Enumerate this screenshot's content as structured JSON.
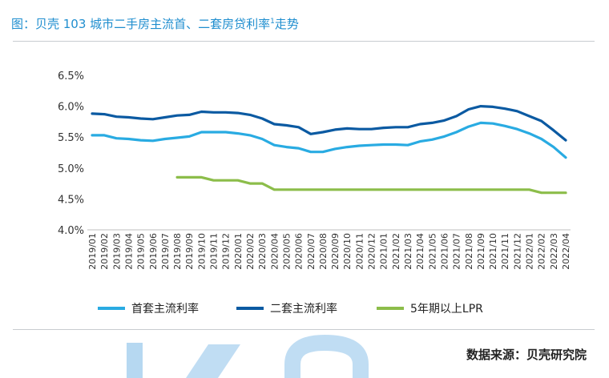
{
  "header": {
    "title": "图：贝壳 103 城市二手房主流首、二套房贷利率",
    "title_sup": "1",
    "title_tail": "走势"
  },
  "footer": {
    "source": "数据来源：贝壳研究院"
  },
  "colors": {
    "first_home": "#29abe2",
    "second_home": "#0b5aa2",
    "lpr": "#8cbd4a",
    "title": "#1f8ecf",
    "watermark": "#2f8fd6"
  },
  "chart_data": {
    "type": "line",
    "title": "图：贝壳 103 城市二手房主流首、二套房贷利率¹走势",
    "xlabel": "",
    "ylabel": "",
    "ylim": [
      4.0,
      6.5
    ],
    "yticks": [
      "4.0%",
      "4.5%",
      "5.0%",
      "5.5%",
      "6.0%",
      "6.5%"
    ],
    "grid": false,
    "legend": "bottom",
    "x": [
      "2019/01",
      "2019/02",
      "2019/03",
      "2019/04",
      "2019/05",
      "2019/06",
      "2019/07",
      "2019/08",
      "2019/09",
      "2019/10",
      "2019/11",
      "2019/12",
      "2020/01",
      "2020/02",
      "2020/03",
      "2020/04",
      "2020/05",
      "2020/06",
      "2020/07",
      "2020/08",
      "2020/09",
      "2020/10",
      "2020/11",
      "2020/12",
      "2021/01",
      "2021/02",
      "2021/03",
      "2021/04",
      "2021/05",
      "2021/06",
      "2021/07",
      "2021/08",
      "2021/09",
      "2021/10",
      "2021/11",
      "2021/12",
      "2022/01",
      "2022/02",
      "2022/03",
      "2022/04"
    ],
    "series": [
      {
        "name": "首套主流利率",
        "values": [
          5.53,
          5.53,
          5.48,
          5.47,
          5.45,
          5.44,
          5.47,
          5.49,
          5.51,
          5.58,
          5.58,
          5.58,
          5.56,
          5.53,
          5.47,
          5.37,
          5.34,
          5.32,
          5.26,
          5.26,
          5.31,
          5.34,
          5.36,
          5.37,
          5.38,
          5.38,
          5.37,
          5.43,
          5.46,
          5.51,
          5.58,
          5.67,
          5.73,
          5.72,
          5.68,
          5.63,
          5.56,
          5.47,
          5.34,
          5.17
        ]
      },
      {
        "name": "二套主流利率",
        "values": [
          5.88,
          5.87,
          5.83,
          5.82,
          5.8,
          5.79,
          5.82,
          5.85,
          5.86,
          5.91,
          5.9,
          5.9,
          5.89,
          5.86,
          5.8,
          5.71,
          5.69,
          5.66,
          5.55,
          5.58,
          5.62,
          5.64,
          5.63,
          5.63,
          5.65,
          5.66,
          5.66,
          5.71,
          5.73,
          5.77,
          5.84,
          5.95,
          6.0,
          5.99,
          5.96,
          5.92,
          5.84,
          5.76,
          5.61,
          5.45
        ]
      },
      {
        "name": "5年期以上LPR",
        "values": [
          null,
          null,
          null,
          null,
          null,
          null,
          null,
          4.85,
          4.85,
          4.85,
          4.8,
          4.8,
          4.8,
          4.75,
          4.75,
          4.65,
          4.65,
          4.65,
          4.65,
          4.65,
          4.65,
          4.65,
          4.65,
          4.65,
          4.65,
          4.65,
          4.65,
          4.65,
          4.65,
          4.65,
          4.65,
          4.65,
          4.65,
          4.65,
          4.65,
          4.65,
          4.65,
          4.6,
          4.6,
          4.6
        ]
      }
    ]
  }
}
